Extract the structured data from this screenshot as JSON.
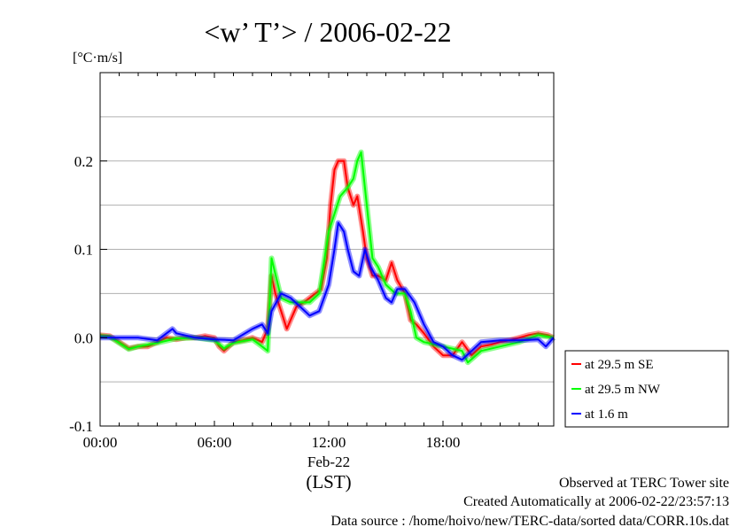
{
  "chart_data": {
    "type": "line",
    "title": "<w’ T’> / 2006-02-22",
    "ylabel": "[°C·m/s]",
    "xlabel": "(LST)",
    "x_date_label": "Feb-22",
    "xlim": [
      0,
      24
    ],
    "ylim": [
      -0.1,
      0.3
    ],
    "x_ticks": [
      0,
      6,
      12,
      18
    ],
    "x_tick_labels": [
      "00:00",
      "06:00",
      "12:00",
      "18:00"
    ],
    "y_ticks": [
      -0.1,
      0.0,
      0.1,
      0.2
    ],
    "y_tick_labels": [
      "-0.1",
      "0.0",
      "0.1",
      "0.2"
    ],
    "grid": true,
    "legend_position": "right-bottom-outside",
    "series": [
      {
        "name": "at 29.5 m SE",
        "color": "#ff0000",
        "x": [
          0,
          0.5,
          1,
          1.5,
          2,
          2.5,
          3,
          3.5,
          4,
          4.5,
          5,
          5.5,
          6,
          6.25,
          6.5,
          7,
          7.5,
          8,
          8.5,
          8.8,
          9,
          9.2,
          9.5,
          9.8,
          10,
          10.3,
          10.7,
          11,
          11.3,
          11.6,
          11.9,
          12.1,
          12.3,
          12.5,
          12.8,
          13,
          13.3,
          13.5,
          13.8,
          14,
          14.3,
          14.6,
          15,
          15.3,
          15.6,
          16,
          16.3,
          16.6,
          17,
          17.5,
          18,
          18.5,
          19,
          19.5,
          20,
          20.5,
          21,
          21.5,
          22,
          22.5,
          23,
          23.5,
          23.8
        ],
        "y": [
          0.003,
          0.002,
          -0.005,
          -0.012,
          -0.01,
          -0.01,
          -0.005,
          0.0,
          -0.002,
          0.0,
          0.0,
          0.002,
          0.0,
          -0.01,
          -0.015,
          -0.005,
          -0.003,
          0.0,
          -0.005,
          0.01,
          0.07,
          0.05,
          0.03,
          0.01,
          0.02,
          0.035,
          0.04,
          0.045,
          0.05,
          0.055,
          0.09,
          0.15,
          0.19,
          0.2,
          0.2,
          0.17,
          0.15,
          0.16,
          0.12,
          0.09,
          0.07,
          0.07,
          0.065,
          0.085,
          0.065,
          0.05,
          0.02,
          0.015,
          0.005,
          -0.01,
          -0.02,
          -0.02,
          -0.005,
          -0.02,
          -0.01,
          -0.008,
          -0.005,
          -0.003,
          0.0,
          0.003,
          0.005,
          0.003,
          0.0
        ]
      },
      {
        "name": "at 29.5 m NW",
        "color": "#00ff00",
        "x": [
          0,
          0.5,
          1,
          1.5,
          2,
          3,
          4,
          5,
          6,
          6.5,
          7,
          8,
          8.5,
          8.8,
          9,
          9.5,
          10,
          11,
          11.5,
          12,
          12.3,
          12.6,
          13,
          13.3,
          13.5,
          13.7,
          14,
          14.3,
          14.6,
          15,
          15.5,
          16,
          16.3,
          16.6,
          17,
          18,
          19,
          19.3,
          20,
          21,
          22,
          23,
          23.8
        ],
        "y": [
          0.002,
          0.001,
          -0.006,
          -0.013,
          -0.01,
          -0.006,
          -0.001,
          0.0,
          -0.003,
          -0.012,
          -0.006,
          -0.002,
          -0.01,
          -0.015,
          0.09,
          0.045,
          0.04,
          0.04,
          0.05,
          0.12,
          0.14,
          0.16,
          0.17,
          0.18,
          0.2,
          0.21,
          0.15,
          0.09,
          0.08,
          0.06,
          0.05,
          0.05,
          0.03,
          0.0,
          -0.005,
          -0.01,
          -0.015,
          -0.028,
          -0.015,
          -0.01,
          -0.005,
          0.003,
          0.0
        ]
      },
      {
        "name": "at 1.6 m",
        "color": "#0000ff",
        "x": [
          0,
          1,
          2,
          3,
          3.8,
          4,
          5,
          6,
          7,
          8,
          8.5,
          8.8,
          9,
          9.5,
          10,
          10.5,
          11,
          11.5,
          12,
          12.3,
          12.5,
          12.8,
          13,
          13.3,
          13.6,
          13.9,
          14.2,
          14.6,
          15,
          15.3,
          15.6,
          16,
          16.5,
          17,
          17.5,
          18,
          18.5,
          19,
          19.5,
          20,
          21,
          22,
          23,
          23.4,
          23.8
        ],
        "y": [
          0.0,
          0.0,
          0.0,
          -0.003,
          0.01,
          0.005,
          0.0,
          -0.002,
          -0.003,
          0.01,
          0.015,
          0.005,
          0.03,
          0.05,
          0.045,
          0.035,
          0.025,
          0.03,
          0.06,
          0.1,
          0.13,
          0.12,
          0.1,
          0.075,
          0.07,
          0.1,
          0.08,
          0.065,
          0.045,
          0.04,
          0.055,
          0.055,
          0.04,
          0.015,
          -0.005,
          -0.01,
          -0.02,
          -0.025,
          -0.015,
          -0.005,
          -0.003,
          -0.003,
          -0.002,
          -0.01,
          0.0
        ]
      }
    ]
  },
  "footer": {
    "line1": "Observed at TERC Tower site",
    "line2": "Created Automatically at 2006-02-22/23:57:13",
    "line3": "Data source : /home/hoivo/new/TERC-data/sorted  data/CORR.10s.dat"
  }
}
